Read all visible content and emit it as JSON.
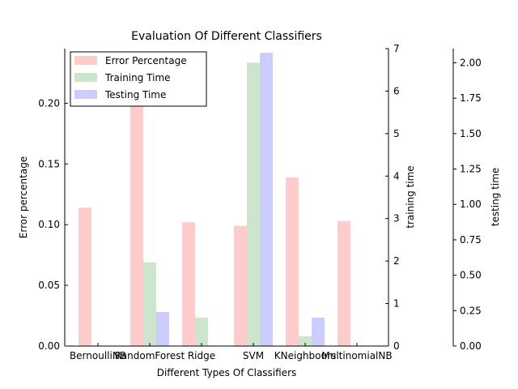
{
  "chart_data": {
    "type": "bar",
    "title": "Evaluation Of Different Classifiers",
    "xlabel": "Different Types Of Classifiers",
    "categories": [
      "BernoulliNB",
      "RandomForest",
      "Ridge",
      "SVM",
      "KNeighbours",
      "MultinomialNB"
    ],
    "series": [
      {
        "name": "Error Percentage",
        "axis": "Error percentage",
        "color": "#ffcccc",
        "values": [
          0.114,
          0.235,
          0.102,
          0.099,
          0.139,
          0.103
        ]
      },
      {
        "name": "Training Time",
        "axis": "training time",
        "color": "#cce5cc",
        "values": [
          0.0,
          1.97,
          0.67,
          6.67,
          0.23,
          0.0
        ]
      },
      {
        "name": "Testing Time",
        "axis": "testing time",
        "color": "#ccccff",
        "values": [
          0.0,
          0.24,
          0.0,
          2.07,
          0.2,
          0.0
        ]
      }
    ],
    "axes": [
      {
        "label": "Error percentage",
        "position": "left",
        "ylim": [
          0,
          0.245
        ],
        "ticks": [
          0,
          0.05,
          0.1,
          0.15,
          0.2
        ],
        "tick_labels": [
          "0.00",
          "0.05",
          "0.10",
          "0.15",
          "0.20"
        ]
      },
      {
        "label": "training time",
        "position": "right",
        "ylim": [
          0,
          7
        ],
        "ticks": [
          0,
          1,
          2,
          3,
          4,
          5,
          6,
          7
        ],
        "tick_labels": [
          "0",
          "1",
          "2",
          "3",
          "4",
          "5",
          "6",
          "7"
        ]
      },
      {
        "label": "testing time",
        "position": "far-right",
        "ylim": [
          0,
          2.1
        ],
        "ticks": [
          0,
          0.25,
          0.5,
          0.75,
          1.0,
          1.25,
          1.5,
          1.75,
          2.0
        ],
        "tick_labels": [
          "0.00",
          "0.25",
          "0.50",
          "0.75",
          "1.00",
          "1.25",
          "1.50",
          "1.75",
          "2.00"
        ]
      }
    ],
    "legend": "top-left",
    "grid": false
  }
}
